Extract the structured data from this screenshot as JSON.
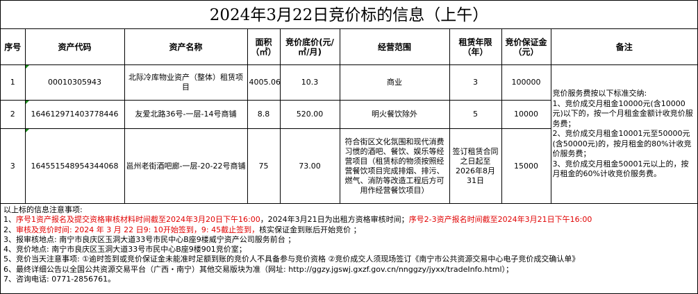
{
  "title": "2024年3月22日竞价标的信息（上午）",
  "headers": [
    "序号",
    "资产代码",
    "资产名称",
    "面积（㎡）",
    "竞价底价(元/㎡/月)",
    "经营范围",
    "租赁年限（年）",
    "竞价保证金（元）",
    "备注"
  ],
  "rows": [
    {
      "no": "1",
      "code": "00010305943",
      "name": "北际冷库物业资产（整体）租赁项目",
      "area": "4005.06",
      "price": "10.3",
      "scope": "商业",
      "term": "3",
      "deposit": "100000"
    },
    {
      "no": "2",
      "code": "164612971403778446",
      "name": "友爱北路36号-一层-14号商铺",
      "area": "8.8",
      "price": "520.00",
      "scope": "明火餐饮除外",
      "term": "5",
      "deposit": "10000"
    },
    {
      "no": "3",
      "code": "164551548954344068",
      "name": "邕州老街酒吧廊-一层-20-22号商铺",
      "area": "75",
      "price": "73.00",
      "scope": "符合街区文化氛围和现代消费习惯的酒吧、餐饮、娱乐等经营项目（租赁标的物须按照经营餐饮项目完成排烟、排污、燃气、消防等改造工程后方可用作经营餐饮项目）",
      "term": "签订租赁合同之日起至2026年8月31日",
      "deposit": "15000"
    }
  ],
  "remark": [
    "竞价服务费按以下标准交纳:",
    "1、竞价成交月租金10000元(含10000元)以下的，按一个月租金金额计收竞价服务费；",
    "2、竞价成交月租金10001元至50000元(含50000元)的，按月租金的80%计收竞价服务费；",
    "3、竞价成交月租金50001元以上的，按月租金的60%计收竞价服务费。"
  ],
  "notes": {
    "heading": "以上标的信息注意事项:",
    "l1a": "1、",
    "l1b": "序号1资产报名及提交资格审核材料时间截至2024年3月20日下午16:00",
    "l1c": "，2024年3月21日为出租方资格审核时间；",
    "l1d": "序号2-3资产报名时间截至2024年3月21日下午16:00",
    "l2a": "2、",
    "l2b": "审核及竞价时间: 2024 年 3 月 22 日9: 10开始签到，9: 45截止签到，",
    "l2c": "核实保证金到账后开始竞价 ；",
    "l3": "3、报审核地点: 南宁市良庆区玉洞大道33号市民中心B座9楼威宁资产公司服务前台 ；",
    "l4": "4、竞价地点: 南宁市良庆区玉洞大道33号市民中心B座9楼901竞价室；",
    "l5": "5、竞价当天注意事项: ①逾时签到或竞价保证金未能准时足额到账的竞价人不具备参与竞价资格 ②竞价成交人须现场签订《南宁市公共资源交易中心电子竞价成交确认单》",
    "l6": "6、最终详细公告以全国公共资源交易平台（广西・南宁）其他交易版块为准（网址: http://ggzy.jgswj.gxzf.gov.cn/nnggzy/jyxx/tradeInfo.html）；",
    "l7": "7、咨询电话:  0771-2856761。"
  },
  "colors": {
    "red": "#e00000",
    "comment_marker": "#1a8a1a"
  }
}
